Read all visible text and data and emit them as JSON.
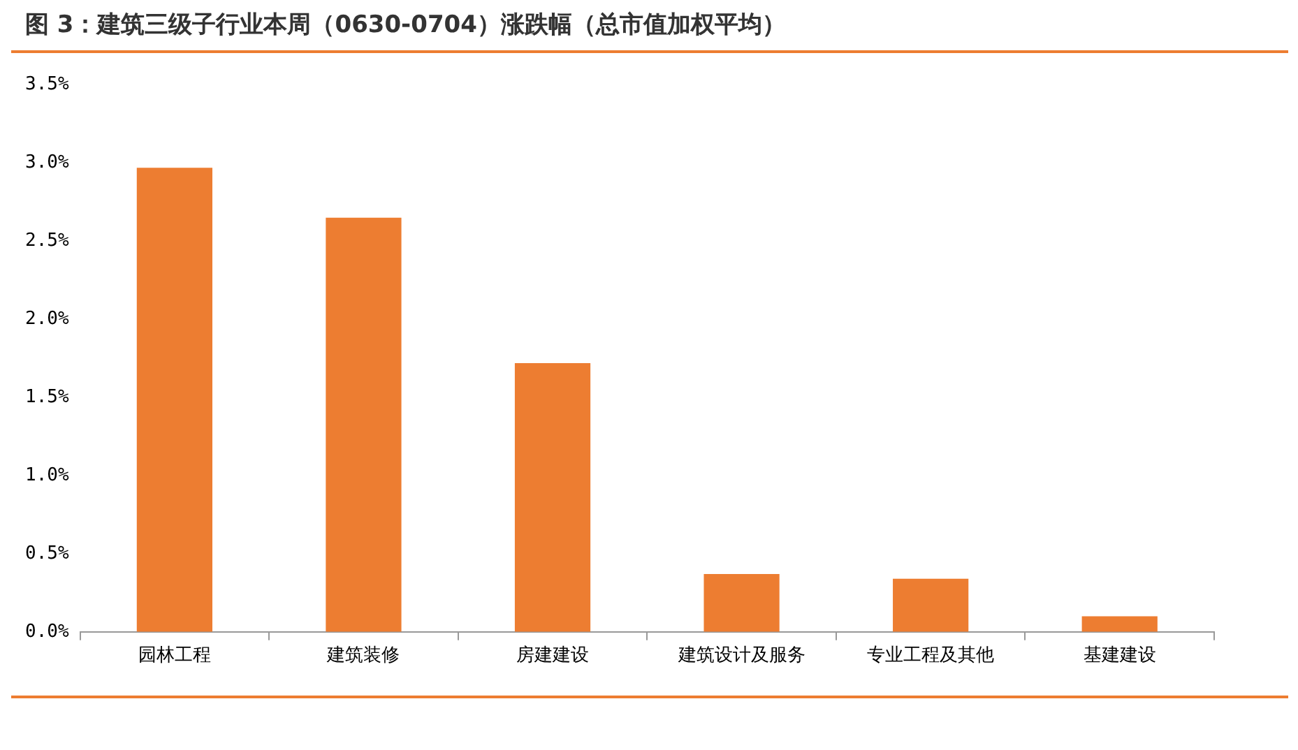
{
  "chart_data": {
    "type": "bar",
    "title": "图 3：建筑三级子行业本周（0630-0704）涨跌幅（总市值加权平均）",
    "categories": [
      "园林工程",
      "建筑装修",
      "房建建设",
      "建筑设计及服务",
      "专业工程及其他",
      "基建建设"
    ],
    "values": [
      2.97,
      2.65,
      1.72,
      0.37,
      0.34,
      0.1
    ],
    "color": "#ed7d31",
    "ylim": [
      0,
      3.5
    ],
    "yticks": [
      {
        "value": 0,
        "label": "0.0%"
      },
      {
        "value": 0.5,
        "label": "0.5%"
      },
      {
        "value": 1,
        "label": "1.0%"
      },
      {
        "value": 1.5,
        "label": "1.5%"
      },
      {
        "value": 2,
        "label": "2.0%"
      },
      {
        "value": 2.5,
        "label": "2.5%"
      },
      {
        "value": 3,
        "label": "3.0%"
      },
      {
        "value": 3.5,
        "label": "3.5%"
      }
    ],
    "grid": false,
    "legend": false
  }
}
